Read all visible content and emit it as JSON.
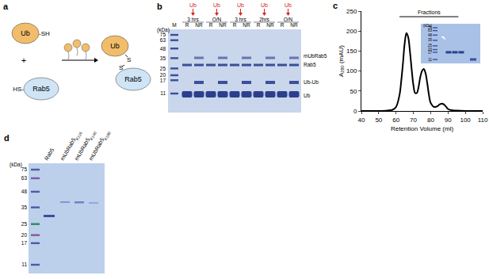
{
  "panels": {
    "a": {
      "label": "a",
      "reactant_1": {
        "name": "Ub",
        "group": "-SH"
      },
      "plus": "+",
      "reactant_2": {
        "name": "Rab5",
        "group": "HS-"
      },
      "product": {
        "name_1": "Ub",
        "name_2": "Rab5",
        "bond": [
          "S",
          "S"
        ]
      }
    },
    "b": {
      "label": "b",
      "kda_label": "(kDa)",
      "markers": [
        75,
        63,
        48,
        35,
        25,
        20,
        17,
        11
      ],
      "additions": [
        "Ub",
        "Ub",
        "Ub",
        "Ub",
        "Ub"
      ],
      "times": [
        "3 hrs",
        "O/N",
        "3 hrs",
        "2hrs",
        "O/N"
      ],
      "lanes": [
        "M",
        "R",
        "NR",
        "R",
        "NR",
        "R",
        "NR",
        "R",
        "NR",
        "R",
        "NR"
      ],
      "bands": [
        "mUbRab5",
        "Rab5",
        "Ub-Ub",
        "Ub"
      ]
    },
    "c": {
      "label": "c",
      "inset": {
        "kda_label": "(kDa)",
        "markers": [
          75,
          63,
          48,
          35,
          25,
          20,
          17,
          11
        ]
      }
    },
    "d": {
      "label": "d",
      "kda_label": "(kDa)",
      "markers": [
        75,
        63,
        48,
        35,
        25,
        20,
        17,
        11
      ],
      "lanes": [
        {
          "text": "Rab5",
          "subscript": ""
        },
        {
          "text": "mUbRab5",
          "subscript": "K116"
        },
        {
          "text": "mUbRab5",
          "subscript": "K140"
        },
        {
          "text": "mUbRab5",
          "subscript": "K180"
        }
      ]
    }
  },
  "chart_data": {
    "type": "line",
    "x_label": "Retention Volume (ml)",
    "y_label": {
      "text": "A",
      "subscript": "280",
      "suffix": " (mAU)"
    },
    "x": [
      40,
      45,
      50,
      55,
      58,
      60,
      62,
      63,
      64,
      65,
      66,
      67,
      68,
      69,
      70,
      71,
      72,
      73,
      74,
      75,
      76,
      77,
      78,
      79,
      80,
      82,
      84,
      85,
      86,
      87,
      88,
      89,
      90,
      92,
      95,
      100,
      105,
      110
    ],
    "values": [
      0,
      0,
      0,
      1,
      3,
      10,
      40,
      75,
      120,
      170,
      195,
      185,
      150,
      105,
      65,
      45,
      45,
      60,
      85,
      100,
      105,
      95,
      70,
      40,
      20,
      10,
      12,
      16,
      18,
      18,
      15,
      10,
      5,
      2,
      1,
      0,
      0,
      0
    ],
    "color": "#000000",
    "xlim": [
      40,
      110
    ],
    "xticks": [
      40,
      50,
      60,
      70,
      80,
      90,
      100,
      110
    ],
    "ylim": [
      0,
      250
    ],
    "yticks": [
      0,
      50,
      100,
      150,
      200,
      250
    ],
    "grid": false,
    "fractions": {
      "label": "Fractions",
      "x": [
        62,
        96
      ],
      "y": 236
    }
  }
}
